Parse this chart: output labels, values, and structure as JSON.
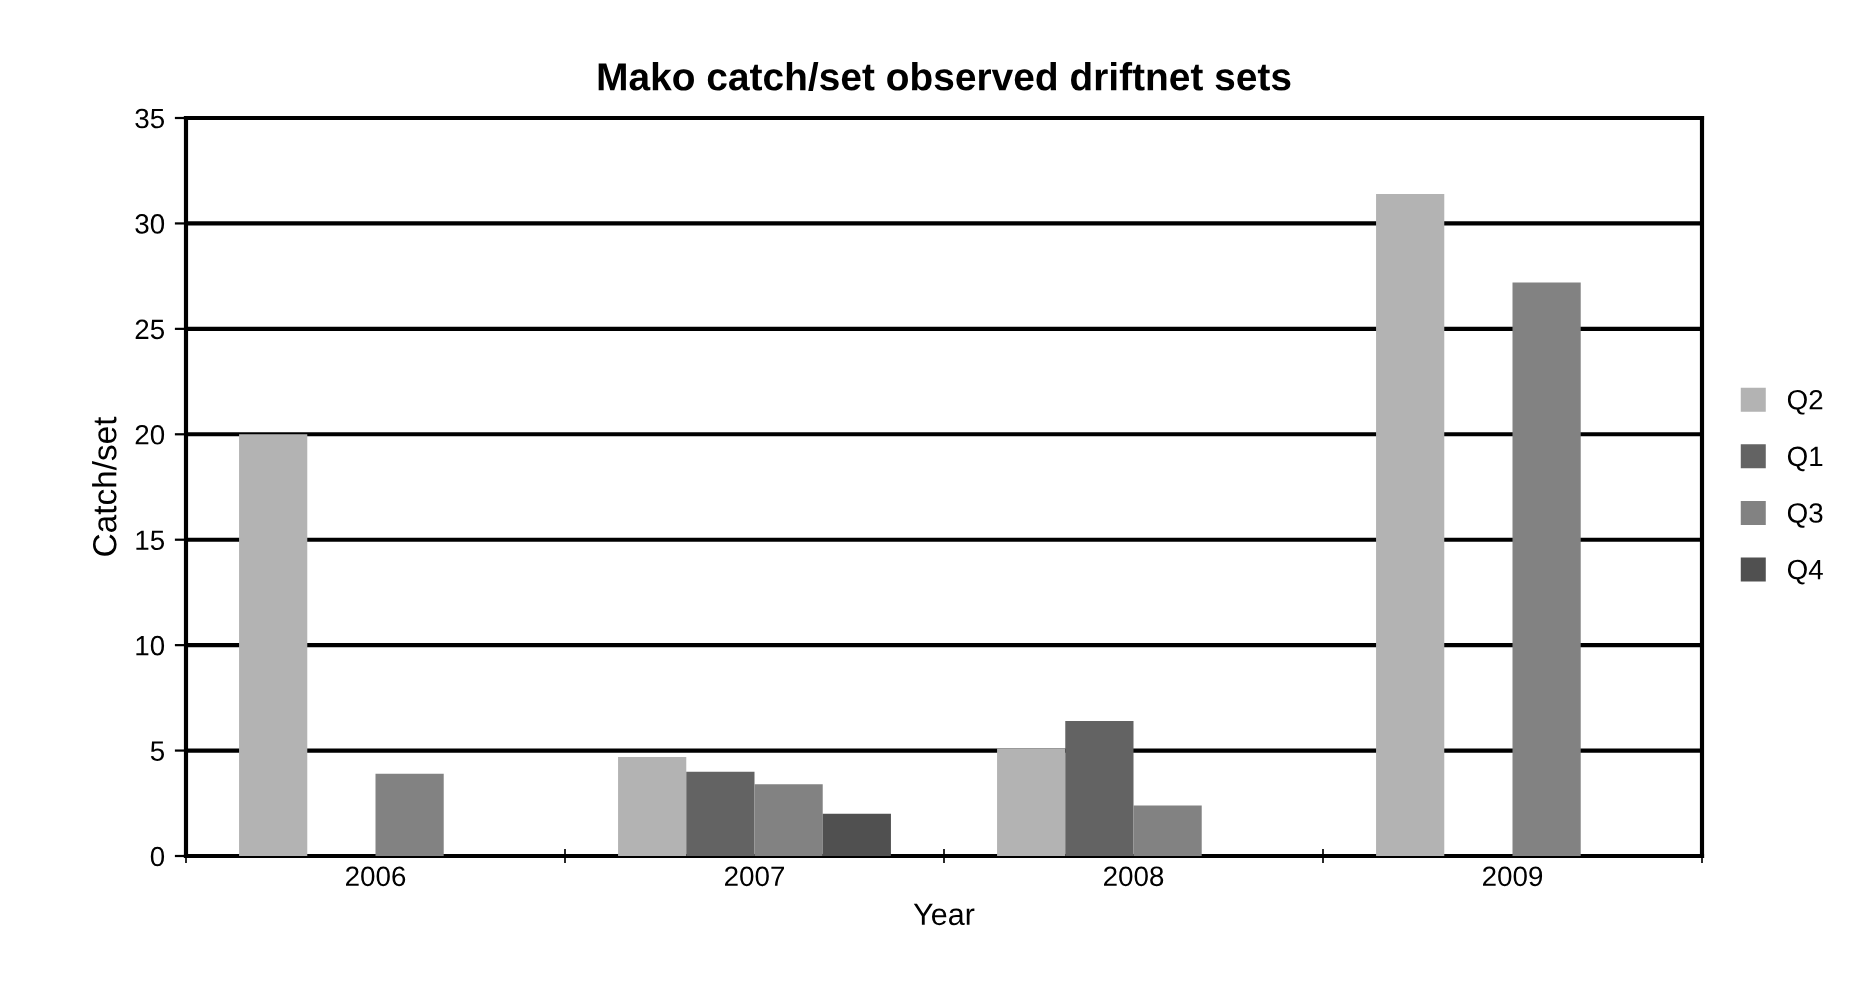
{
  "chart_data": {
    "type": "bar",
    "title": "Mako catch/set observed driftnet sets",
    "xlabel": "Year",
    "ylabel": "Catch/set",
    "categories": [
      "2006",
      "2007",
      "2008",
      "2009"
    ],
    "series": [
      {
        "name": "Q2",
        "color": "#b3b3b3",
        "values": [
          20.0,
          4.7,
          5.1,
          31.4
        ]
      },
      {
        "name": "Q1",
        "color": "#636363",
        "values": [
          null,
          4.0,
          6.4,
          null
        ]
      },
      {
        "name": "Q3",
        "color": "#828282",
        "values": [
          3.9,
          3.4,
          2.4,
          27.2
        ]
      },
      {
        "name": "Q4",
        "color": "#505050",
        "values": [
          null,
          2.0,
          null,
          null
        ]
      }
    ],
    "ylim": [
      0,
      35
    ],
    "yticks": [
      0,
      5,
      10,
      15,
      20,
      25,
      30,
      35
    ],
    "grid": "y",
    "legend": "right"
  }
}
